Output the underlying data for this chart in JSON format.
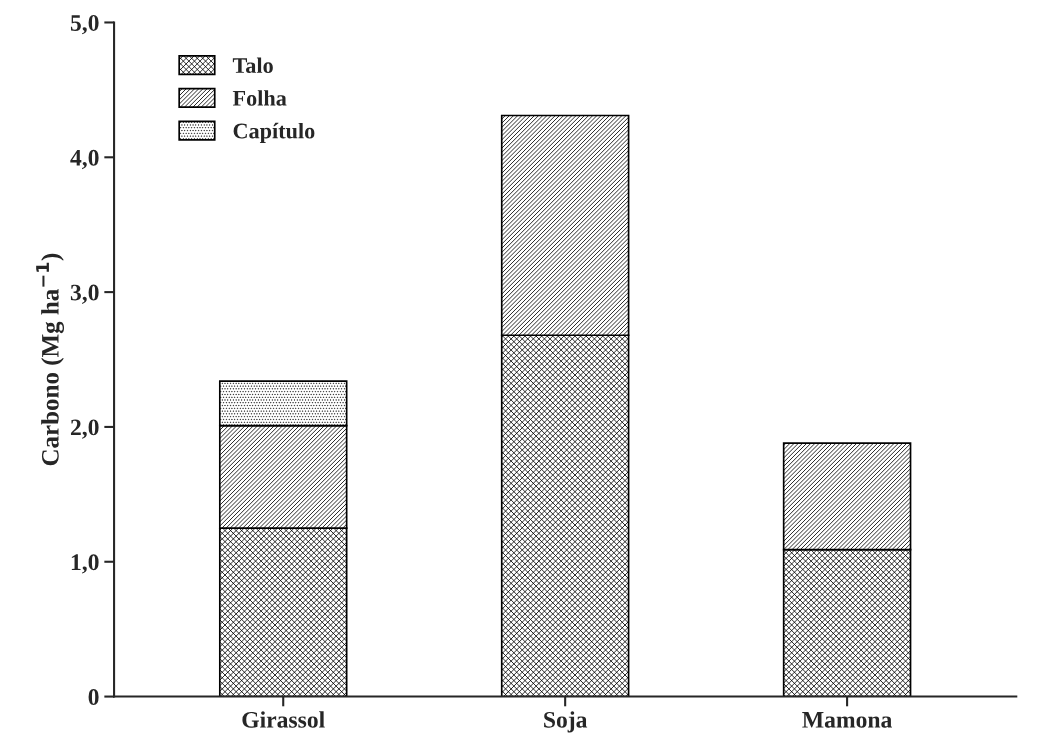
{
  "chart_data": {
    "type": "bar",
    "stacked": true,
    "ylabel": "Carbono (Mg ha$^{−1}$)",
    "categories": [
      "Girassol",
      "Soja",
      "Mamona"
    ],
    "series": [
      {
        "name": "Talo",
        "color": "#000000",
        "values": [
          1.25,
          2.68,
          1.09
        ]
      },
      {
        "name": "Folha",
        "color": "#000000",
        "values": [
          0.76,
          1.63,
          0.79
        ]
      },
      {
        "name": "Capítulo",
        "color": "#000000",
        "values": [
          0.33,
          null,
          null
        ]
      }
    ],
    "ylim": [
      0,
      5
    ],
    "yticks": [
      0,
      {
        "value": 1,
        "label": "1,0"
      },
      {
        "value": 2,
        "label": "2,0"
      },
      {
        "value": 3,
        "label": "3,0"
      },
      {
        "value": 4,
        "label": "4,0"
      },
      {
        "value": 5,
        "label": "5,0"
      }
    ],
    "grid": false,
    "legend": "top left"
  }
}
